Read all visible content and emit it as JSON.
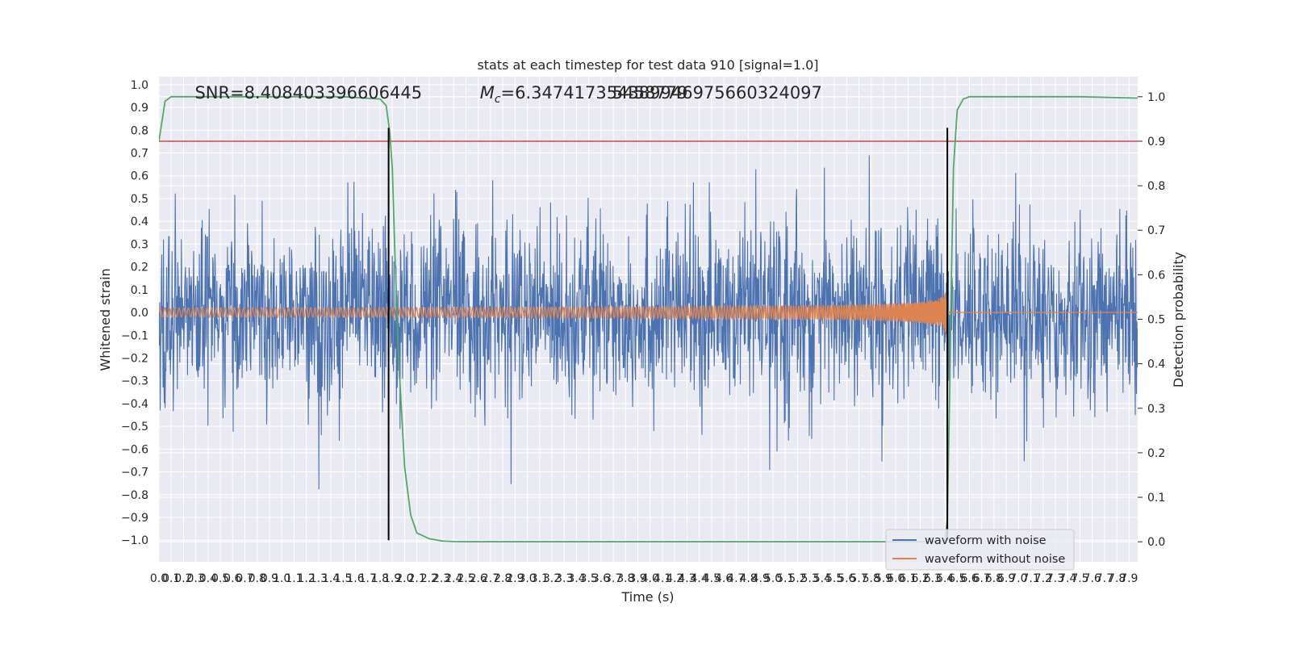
{
  "chart_data": {
    "type": "line",
    "title": "stats at each timestep for test data 910 [signal=1.0]",
    "xlabel": "Time (s)",
    "ylabel": "Whitened strain",
    "y2label": "Detection probability",
    "xlim": [
      0.0,
      7.97
    ],
    "ylim": [
      -1.095,
      1.035
    ],
    "y2lim": [
      -0.045,
      1.045
    ],
    "x_ticks": [
      0.0,
      0.1,
      0.2,
      0.3,
      0.4,
      0.5,
      0.6,
      0.7,
      0.8,
      0.9,
      1.0,
      1.1,
      1.2,
      1.3,
      1.4,
      1.5,
      1.6,
      1.7,
      1.8,
      1.9,
      2.0,
      2.1,
      2.2,
      2.3,
      2.4,
      2.5,
      2.6,
      2.7,
      2.8,
      2.9,
      3.0,
      3.1,
      3.2,
      3.3,
      3.4,
      3.5,
      3.6,
      3.7,
      3.8,
      3.9,
      4.0,
      4.1,
      4.2,
      4.3,
      4.4,
      4.5,
      4.6,
      4.7,
      4.8,
      4.9,
      5.0,
      5.1,
      5.2,
      5.3,
      5.4,
      5.5,
      5.6,
      5.7,
      5.8,
      5.9,
      6.0,
      6.1,
      6.2,
      6.3,
      6.4,
      6.5,
      6.6,
      6.7,
      6.8,
      6.9,
      7.0,
      7.1,
      7.2,
      7.3,
      7.4,
      7.5,
      7.6,
      7.7,
      7.8,
      7.9
    ],
    "x_tick_labels": [
      "0.0",
      "0.1",
      "0.2",
      "0.3",
      "0.4",
      "0.5",
      "0.6",
      "0.7",
      "0.8",
      "0.9",
      "1.0",
      "1.1",
      "1.2",
      "1.3",
      "1.4",
      "1.5",
      "1.6",
      "1.7",
      "1.8",
      "1.9",
      "2.0",
      "2.1",
      "2.2",
      "2.3",
      "2.4",
      "2.5",
      "2.6",
      "2.7",
      "2.8",
      "2.9",
      "3.0",
      "3.1",
      "3.2",
      "3.3",
      "3.4",
      "3.5",
      "3.6",
      "3.7",
      "3.8",
      "3.9",
      "4.0",
      "4.1",
      "4.2",
      "4.3",
      "4.4",
      "4.5",
      "4.6",
      "4.7",
      "4.8",
      "4.9",
      "5.0",
      "5.1",
      "5.2",
      "5.3",
      "5.4",
      "5.5",
      "5.6",
      "5.7",
      "5.8",
      "5.9",
      "6.0",
      "6.1",
      "6.2",
      "6.3",
      "6.4",
      "6.5",
      "6.6",
      "6.7",
      "6.8",
      "6.9",
      "7.0",
      "7.1",
      "7.2",
      "7.3",
      "7.4",
      "7.5",
      "7.6",
      "7.7",
      "7.8",
      "7.9"
    ],
    "y_ticks": [
      -1.0,
      -0.9,
      -0.8,
      -0.7,
      -0.6,
      -0.5,
      -0.4,
      -0.3,
      -0.2,
      -0.1,
      0.0,
      0.1,
      0.2,
      0.3,
      0.4,
      0.5,
      0.6,
      0.7,
      0.8,
      0.9,
      1.0
    ],
    "y_tick_labels": [
      "−1.0",
      "−0.9",
      "−0.8",
      "−0.7",
      "−0.6",
      "−0.5",
      "−0.4",
      "−0.3",
      "−0.2",
      "−0.1",
      "0.0",
      "0.1",
      "0.2",
      "0.3",
      "0.4",
      "0.5",
      "0.6",
      "0.7",
      "0.8",
      "0.9",
      "1.0"
    ],
    "y2_ticks": [
      0.0,
      0.1,
      0.2,
      0.3,
      0.4,
      0.5,
      0.6,
      0.7,
      0.8,
      0.9,
      1.0
    ],
    "y2_tick_labels": [
      "0.0",
      "0.1",
      "0.2",
      "0.3",
      "0.4",
      "0.5",
      "0.6",
      "0.7",
      "0.8",
      "0.9",
      "1.0"
    ],
    "grid": true,
    "legend_location": "lower right",
    "series": [
      {
        "name": "waveform with noise",
        "axis": "left",
        "color": "#4c72b0",
        "kind": "noise",
        "typical_envelope": 0.35,
        "max": 0.92,
        "min": -1.0
      },
      {
        "name": "waveform without noise",
        "axis": "left",
        "color": "#dd8452",
        "kind": "chirp",
        "start_amplitude": 0.02,
        "peak_time": 6.42,
        "peak_max": 0.26,
        "peak_min": -0.17,
        "post_merger_value": 0.0
      },
      {
        "axis": "right",
        "color": "#55a868",
        "x": [
          0.0,
          0.05,
          0.1,
          0.2,
          0.5,
          1.0,
          1.5,
          1.8,
          1.85,
          1.88,
          1.9,
          1.92,
          1.95,
          2.0,
          2.05,
          2.1,
          2.2,
          2.3,
          2.4,
          2.5,
          2.6,
          3.0,
          4.0,
          5.0,
          6.0,
          6.3,
          6.4,
          6.42,
          6.44,
          6.45,
          6.47,
          6.5,
          6.55,
          6.6,
          7.0,
          7.5,
          7.97
        ],
        "y": [
          0.9,
          0.99,
          1.0,
          1.0,
          1.0,
          1.0,
          1.0,
          0.995,
          0.98,
          0.92,
          0.84,
          0.66,
          0.42,
          0.17,
          0.06,
          0.02,
          0.007,
          0.002,
          0.0005,
          0.0002,
          0.0001,
          0.0001,
          0.0001,
          0.0001,
          0.0001,
          0.0002,
          0.002,
          0.05,
          0.35,
          0.55,
          0.84,
          0.97,
          0.995,
          1.0,
          1.0,
          1.0,
          0.997
        ]
      }
    ],
    "threshold_line": {
      "axis": "right",
      "value": 0.9,
      "color": "#c44e52"
    },
    "vertical_markers": {
      "color": "#000000",
      "x": [
        1.87,
        6.42
      ],
      "from": -1.0,
      "to": 0.93
    },
    "annotations": [
      {
        "text": "SNR=8.408403396606445",
        "x": 0.2,
        "y": 0.965
      },
      {
        "text_math": "M",
        "text_sub": "c",
        "text_rest": "=6.347417354389946975660324097",
        "x": 2.6,
        "y": 0.965
      },
      {
        "text": "5458779",
        "x": 3.6,
        "y": 0.965
      }
    ]
  }
}
